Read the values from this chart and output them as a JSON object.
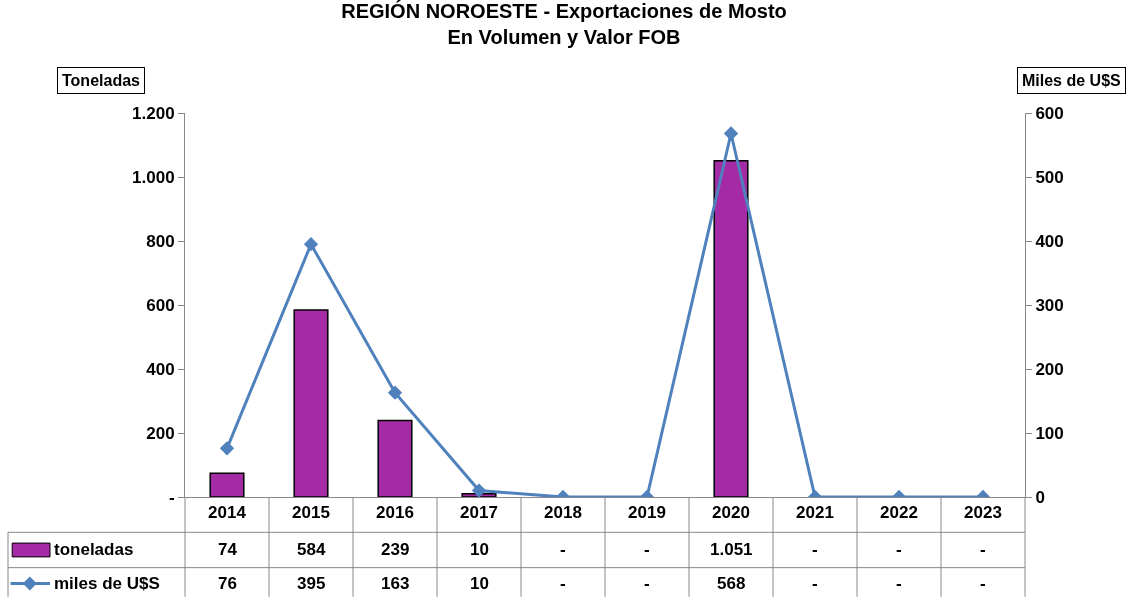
{
  "chart_data": {
    "type": "bar",
    "title": "REGIÓN NOROESTE - Exportaciones de Mosto\nEn Volumen y Valor FOB",
    "ylabel": "Toneladas",
    "y2label": "Miles de U$S",
    "categories": [
      "2014",
      "2015",
      "2016",
      "2017",
      "2018",
      "2019",
      "2020",
      "2021",
      "2022",
      "2023"
    ],
    "series": [
      {
        "name": "toneladas",
        "color": "#a52aa5",
        "values": [
          74,
          584,
          239,
          10,
          0,
          0,
          1051,
          0,
          0,
          0
        ],
        "value_labels": [
          "74",
          "584",
          "239",
          "10",
          "-",
          "-",
          "1.051",
          "-",
          "-",
          "-"
        ]
      },
      {
        "name": "miles de U$S",
        "type": "line",
        "axis": "y2",
        "color": "#4f81bd",
        "marker": "diamond",
        "values": [
          76,
          395,
          163,
          10,
          0,
          0,
          568,
          0,
          0,
          0
        ],
        "value_labels": [
          "76",
          "395",
          "163",
          "10",
          "-",
          "-",
          "568",
          "-",
          "-",
          "-"
        ]
      }
    ],
    "ylim": [
      0,
      1200
    ],
    "yticks": [
      {
        "value": 0,
        "label": "-"
      },
      200,
      400,
      600,
      800,
      {
        "value": 1000,
        "label": "1.000"
      },
      {
        "value": 1200,
        "label": "1.200"
      }
    ],
    "y2lim": [
      0,
      600
    ],
    "y2ticks": [
      0,
      100,
      200,
      300,
      400,
      500,
      600
    ],
    "legend": "bottom left"
  }
}
